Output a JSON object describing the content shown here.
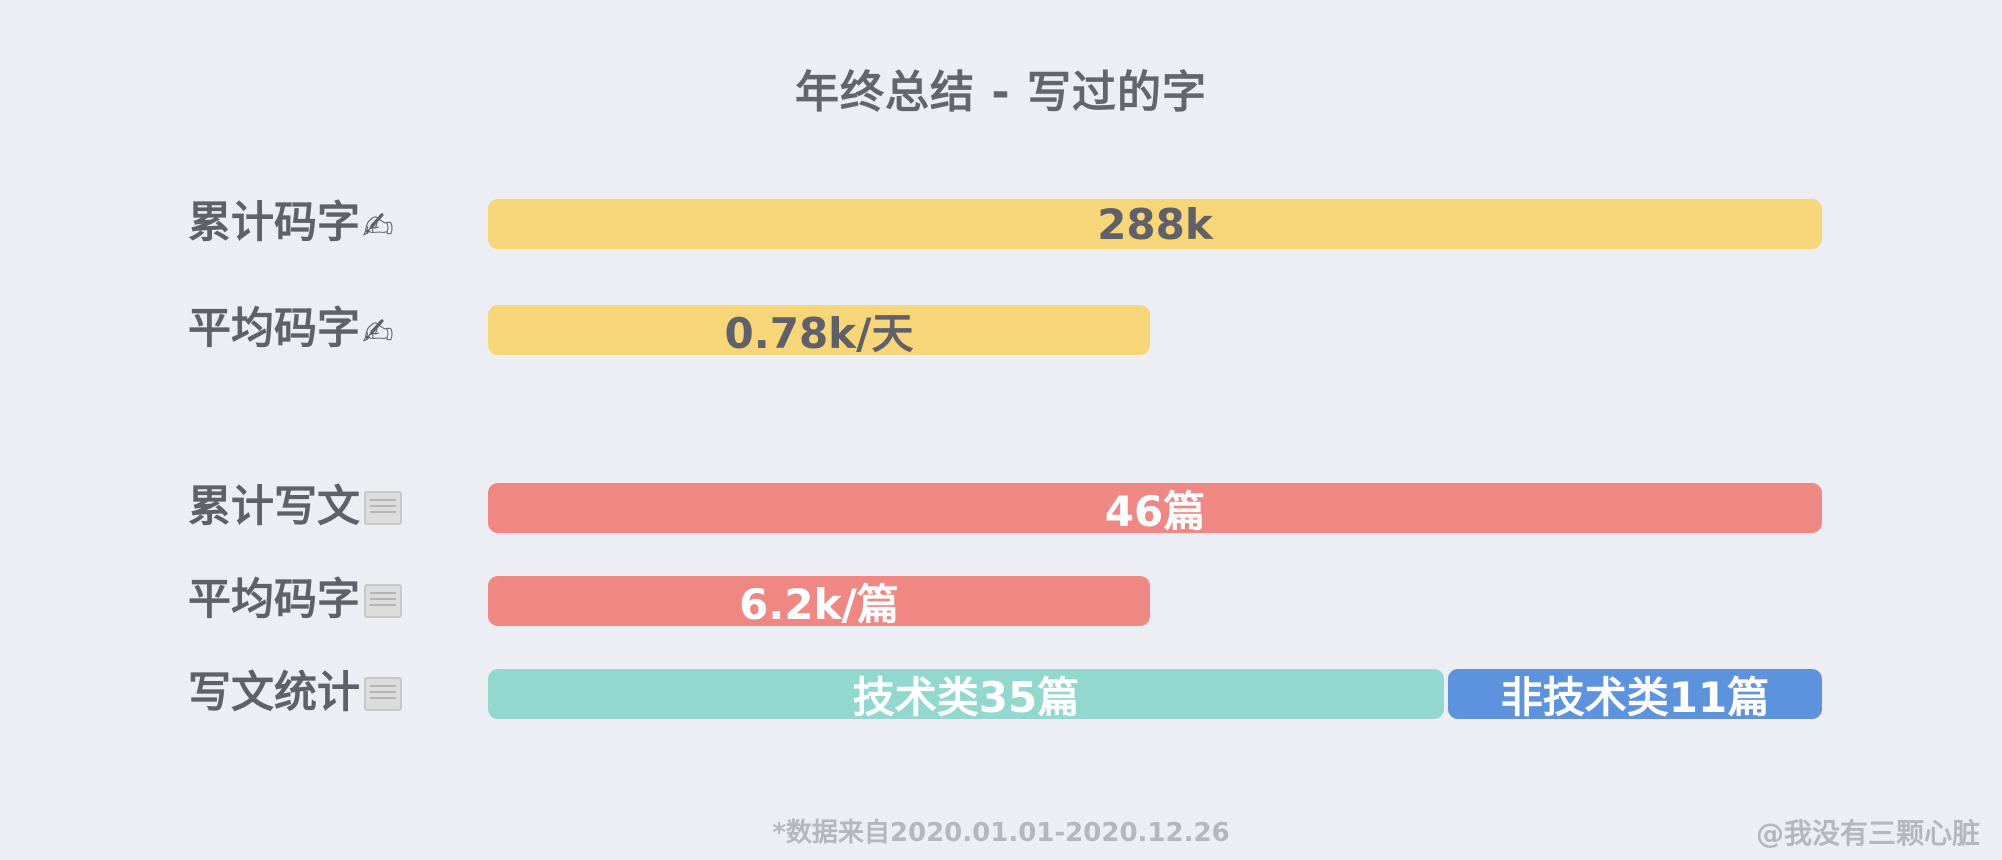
{
  "chart_data": {
    "type": "bar",
    "title": "年终总结 - 写过的字",
    "rows": [
      {
        "label": "累计码字",
        "icon": "writing-hand-icon",
        "segments": [
          {
            "value_text": "288k",
            "fraction": 1.0,
            "color": "#f7d67a",
            "text_color": "#5f6068"
          }
        ]
      },
      {
        "label": "平均码字",
        "icon": "writing-hand-icon",
        "segments": [
          {
            "value_text": "0.78k/天",
            "fraction": 0.5,
            "color": "#f7d67a",
            "text_color": "#5f6068"
          }
        ]
      },
      {
        "label": "累计写文",
        "icon": "newspaper-icon",
        "segments": [
          {
            "value_text": "46篇",
            "fraction": 1.0,
            "color": "#ef8783",
            "text_color": "#ffffff"
          }
        ]
      },
      {
        "label": "平均码字",
        "icon": "newspaper-icon",
        "segments": [
          {
            "value_text": "6.2k/篇",
            "fraction": 0.5,
            "color": "#ef8783",
            "text_color": "#ffffff"
          }
        ]
      },
      {
        "label": "写文统计",
        "icon": "newspaper-icon",
        "segments": [
          {
            "value_text": "技术类35篇",
            "value": 35,
            "color": "#92d8cf",
            "text_color": "#ffffff"
          },
          {
            "value_text": "非技术类11篇",
            "value": 11,
            "color": "#5d92dd",
            "text_color": "#ffffff"
          }
        ]
      }
    ],
    "footnote": "*数据来自2020.01.01-2020.12.26",
    "credit": "@我没有三颗心脏"
  }
}
